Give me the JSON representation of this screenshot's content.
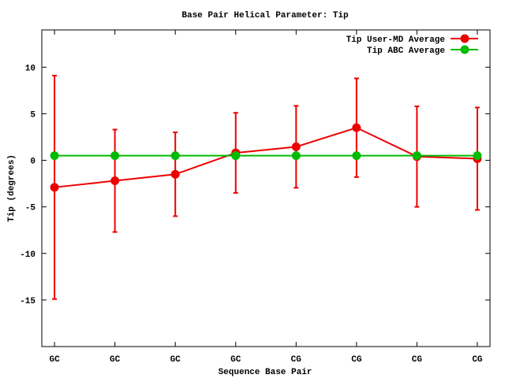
{
  "chart_data": {
    "type": "line",
    "title": "Base Pair Helical Parameter: Tip",
    "x_label": "Sequence Base Pair",
    "y_label": "Tip (degrees)",
    "categories": [
      "GC",
      "GC",
      "GC",
      "GC",
      "CG",
      "CG",
      "CG",
      "CG"
    ],
    "series": [
      {
        "name": "Tip User-MD Average",
        "color": "#ee0000",
        "values": [
          -2.9,
          -2.2,
          -1.5,
          0.8,
          1.45,
          3.5,
          0.4,
          0.17
        ],
        "errors": [
          12,
          5.5,
          4.5,
          4.3,
          4.4,
          5.3,
          5.4,
          5.5
        ]
      },
      {
        "name": "Tip ABC Average",
        "color": "#00bb00",
        "values": [
          0.5,
          0.5,
          0.5,
          0.5,
          0.5,
          0.5,
          0.5,
          0.5
        ]
      }
    ],
    "ylim": [
      -20,
      14
    ],
    "yticks": [
      -15,
      -10,
      -5,
      0,
      5,
      10
    ],
    "legend": "top-right"
  }
}
